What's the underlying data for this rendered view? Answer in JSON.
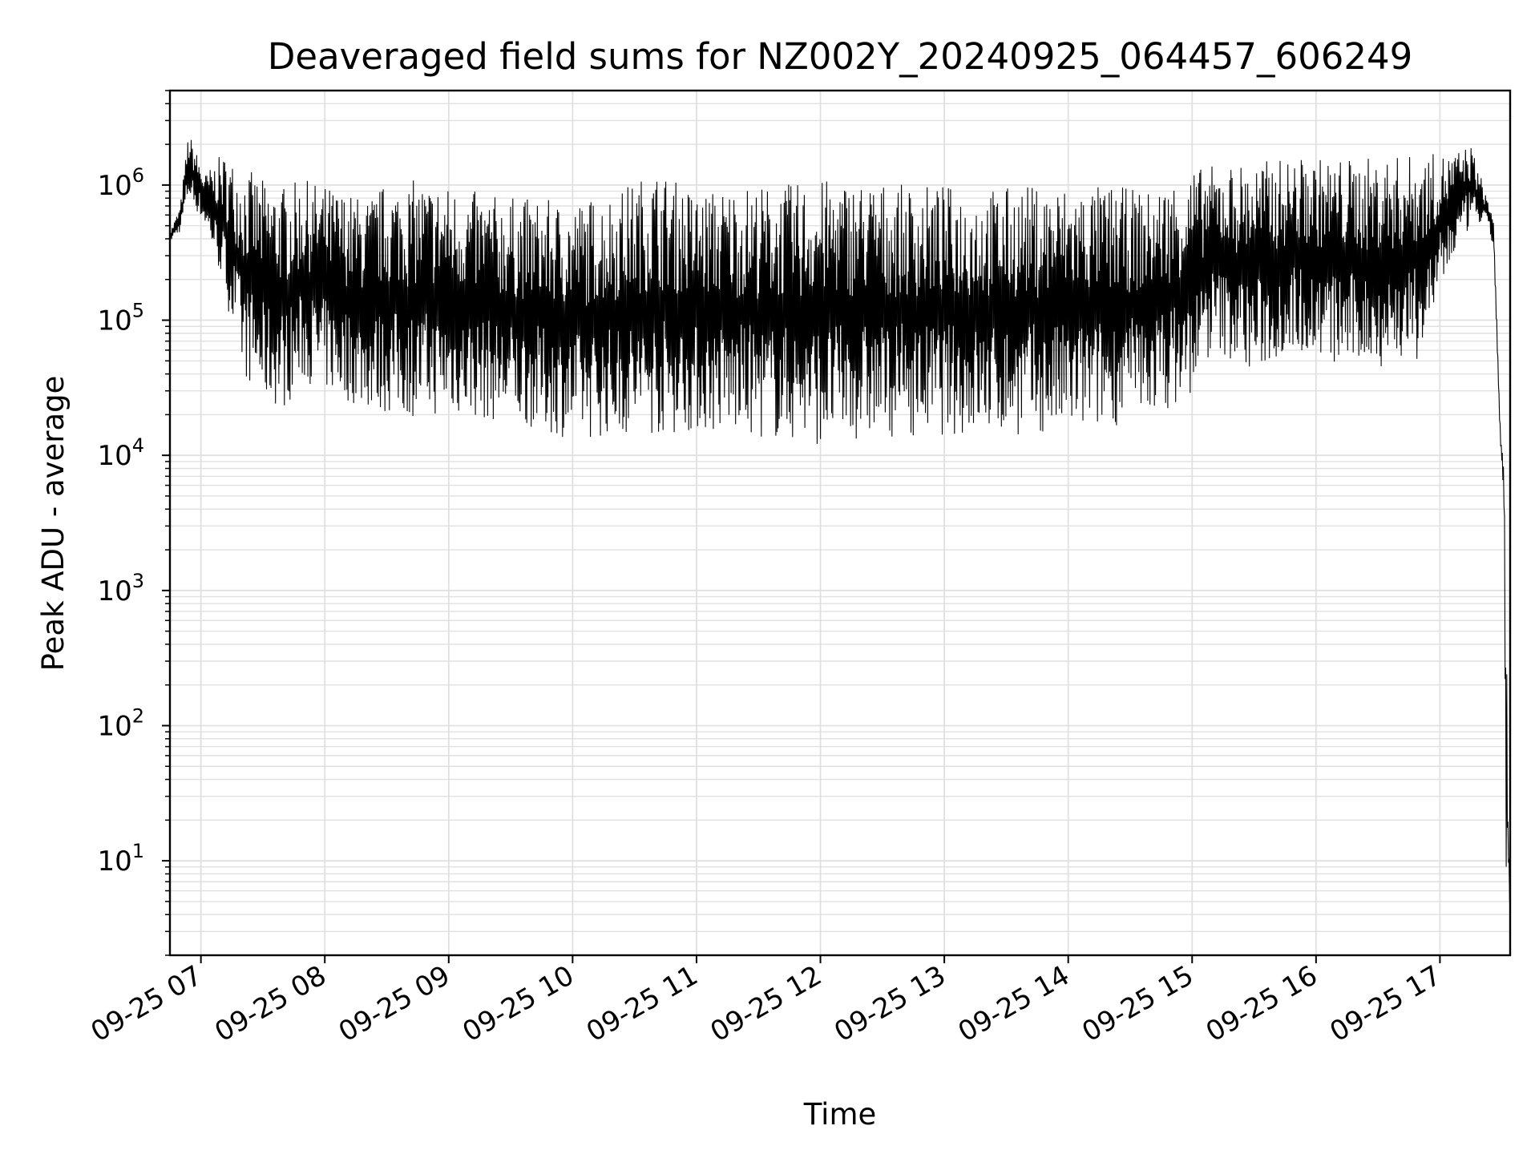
{
  "chart_data": {
    "type": "line",
    "title": "Deaveraged field sums for NZ002Y_20240925_064457_606249",
    "xlabel": "Time",
    "ylabel": "Peak ADU - average",
    "x_axis": {
      "type": "time",
      "range": [
        "2024-09-25 06:45",
        "2024-09-25 17:34"
      ],
      "ticks": [
        "2024-09-25 07:00",
        "2024-09-25 08:00",
        "2024-09-25 09:00",
        "2024-09-25 10:00",
        "2024-09-25 11:00",
        "2024-09-25 12:00",
        "2024-09-25 13:00",
        "2024-09-25 14:00",
        "2024-09-25 15:00",
        "2024-09-25 16:00",
        "2024-09-25 17:00"
      ],
      "tick_labels": [
        "09-25 07",
        "09-25 08",
        "09-25 09",
        "09-25 10",
        "09-25 11",
        "09-25 12",
        "09-25 13",
        "09-25 14",
        "09-25 15",
        "09-25 16",
        "09-25 17"
      ]
    },
    "y_axis": {
      "scale": "log",
      "range": [
        2,
        5000000
      ],
      "ticks": [
        10,
        100,
        1000,
        10000,
        100000,
        1000000
      ],
      "tick_labels": [
        {
          "base": "10",
          "exp": "1"
        },
        {
          "base": "10",
          "exp": "2"
        },
        {
          "base": "10",
          "exp": "3"
        },
        {
          "base": "10",
          "exp": "4"
        },
        {
          "base": "10",
          "exp": "5"
        },
        {
          "base": "10",
          "exp": "6"
        }
      ]
    },
    "grid": true,
    "line_color": "#000000",
    "grid_color": "#e0e0e0",
    "series": [
      {
        "x": [
          "2024-09-25 06:45",
          "2024-09-25 06:50",
          "2024-09-25 06:54",
          "2024-09-25 07:02",
          "2024-09-25 07:10",
          "2024-09-25 07:20",
          "2024-09-25 07:30",
          "2024-09-25 07:40",
          "2024-09-25 07:50",
          "2024-09-25 08:00",
          "2024-09-25 08:10",
          "2024-09-25 08:20",
          "2024-09-25 08:30",
          "2024-09-25 08:45",
          "2024-09-25 09:00",
          "2024-09-25 09:20",
          "2024-09-25 09:40",
          "2024-09-25 10:00",
          "2024-09-25 10:20",
          "2024-09-25 10:40",
          "2024-09-25 11:00",
          "2024-09-25 11:20",
          "2024-09-25 11:40",
          "2024-09-25 12:00",
          "2024-09-25 12:20",
          "2024-09-25 12:40",
          "2024-09-25 13:00",
          "2024-09-25 13:20",
          "2024-09-25 13:40",
          "2024-09-25 14:00",
          "2024-09-25 14:20",
          "2024-09-25 14:40",
          "2024-09-25 14:58",
          "2024-09-25 15:10",
          "2024-09-25 15:30",
          "2024-09-25 15:50",
          "2024-09-25 16:10",
          "2024-09-25 16:30",
          "2024-09-25 16:50",
          "2024-09-25 17:05",
          "2024-09-25 17:15",
          "2024-09-25 17:22",
          "2024-09-25 17:26",
          "2024-09-25 17:29",
          "2024-09-25 17:31",
          "2024-09-25 17:32",
          "2024-09-25 17:34"
        ],
        "upper": [
          450000,
          700000,
          2500000,
          1200000,
          1700000,
          1400000,
          1100000,
          1000000,
          1100000,
          1000000,
          900000,
          800000,
          1050000,
          1100000,
          1000000,
          850000,
          800000,
          750000,
          900000,
          1300000,
          900000,
          1000000,
          1000000,
          1100000,
          1100000,
          1000000,
          1000000,
          950000,
          1000000,
          1000000,
          1000000,
          900000,
          1300000,
          1400000,
          1500000,
          1600000,
          1600000,
          1600000,
          1700000,
          1700000,
          2000000,
          900000,
          600000,
          18000,
          8000,
          800,
          4
        ],
        "lower": [
          380000,
          450000,
          800000,
          500000,
          200000,
          40000,
          25000,
          22000,
          35000,
          30000,
          25000,
          22000,
          20000,
          19000,
          20000,
          18000,
          16000,
          13000,
          14000,
          14000,
          15000,
          14000,
          13000,
          12000,
          13000,
          14000,
          14000,
          14000,
          14000,
          14000,
          16000,
          20000,
          25000,
          60000,
          40000,
          60000,
          45000,
          45000,
          50000,
          250000,
          500000,
          500000,
          350000,
          15000,
          4000,
          4,
          4
        ]
      }
    ]
  }
}
